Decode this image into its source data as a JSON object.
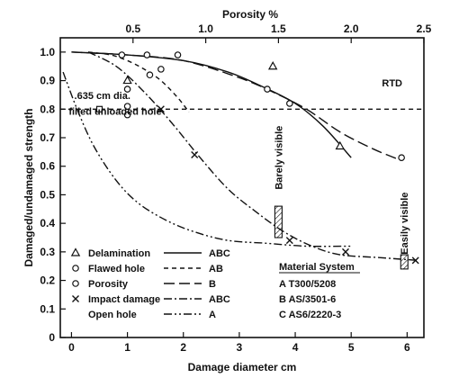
{
  "chart_data": {
    "type": "scatter",
    "title": "",
    "xlabel": "Damage diameter cm",
    "ylabel": "Damaged/undamaged strength",
    "top_xlabel": "Porosity %",
    "xlim": [
      -0.2,
      6.3
    ],
    "ylim": [
      0,
      1.05
    ],
    "top_xlim": [
      0,
      2.5
    ],
    "xticks": [
      "0",
      "1",
      "2",
      "3",
      "4",
      "5",
      "6"
    ],
    "yticks": [
      "0",
      "0.1",
      "0.2",
      "0.3",
      "0.4",
      "0.5",
      "0.6",
      "0.7",
      "0.8",
      "0.9",
      "1.0"
    ],
    "top_xticks": [
      "0.5",
      "1.0",
      "1.5",
      "2.0",
      "2.5"
    ],
    "annotations": {
      "rtd": "RTD",
      "hole_dia": ".635 cm dia.",
      "hole_label": "filled unloaded hole",
      "barely_visible": "Barely visible",
      "easily_visible": "Easily visible"
    },
    "legend": [
      {
        "marker": "△",
        "label": "Delamination",
        "line": "solid",
        "line_label": "ABC"
      },
      {
        "marker": "○",
        "label": "Flawed hole",
        "line": "dashed",
        "line_label": "AB"
      },
      {
        "marker": "●",
        "label": "Porosity",
        "line": "longdash",
        "line_label": "B"
      },
      {
        "marker": "×",
        "label": "Impact damage",
        "line": "dashdot",
        "line_label": "ABC"
      },
      {
        "marker": "",
        "label": "Open hole",
        "line": "dashdotdot",
        "line_label": "A"
      }
    ],
    "material_system": {
      "title": "Material System",
      "items": [
        "A  T300/5208",
        "B  AS/3501-6",
        "C  AS6/2220-3"
      ]
    },
    "series": [
      {
        "name": "Delamination",
        "marker": "triangle",
        "points": [
          [
            3.6,
            0.95
          ],
          [
            1.0,
            0.9
          ],
          [
            4.8,
            0.67
          ]
        ]
      },
      {
        "name": "Flawed hole",
        "marker": "circle",
        "points": [
          [
            0.9,
            0.99
          ],
          [
            1.35,
            0.99
          ],
          [
            1.9,
            0.99
          ],
          [
            1.4,
            0.92
          ],
          [
            1.6,
            0.94
          ],
          [
            1.0,
            0.87
          ],
          [
            1.0,
            0.81
          ],
          [
            1.0,
            0.78
          ]
        ]
      },
      {
        "name": "Porosity",
        "marker": "circle",
        "points": [
          [
            3.5,
            0.87
          ],
          [
            3.9,
            0.82
          ],
          [
            5.9,
            0.63
          ]
        ]
      },
      {
        "name": "Impact damage",
        "marker": "x",
        "points": [
          [
            1.6,
            0.8
          ],
          [
            2.2,
            0.64
          ],
          [
            3.9,
            0.34
          ],
          [
            4.9,
            0.3
          ],
          [
            6.15,
            0.27
          ]
        ]
      },
      {
        "name": "Filled unloaded hole",
        "marker": "square",
        "points": [
          [
            0.5,
            0.8
          ]
        ]
      }
    ],
    "curves": [
      {
        "name": "Delamination",
        "style": "solid",
        "points": [
          [
            0.0,
            1.0
          ],
          [
            1.0,
            0.99
          ],
          [
            2.0,
            0.97
          ],
          [
            2.8,
            0.93
          ],
          [
            3.4,
            0.88
          ],
          [
            4.0,
            0.82
          ],
          [
            4.5,
            0.74
          ],
          [
            5.0,
            0.63
          ]
        ]
      },
      {
        "name": "Flawed hole",
        "style": "dashed",
        "points": [
          [
            0.3,
            1.0
          ],
          [
            0.7,
            0.99
          ],
          [
            1.0,
            0.97
          ],
          [
            1.3,
            0.94
          ],
          [
            1.6,
            0.9
          ],
          [
            1.9,
            0.84
          ],
          [
            2.1,
            0.79
          ]
        ]
      },
      {
        "name": "Porosity",
        "style": "longdash",
        "points": [
          [
            0.0,
            1.0
          ],
          [
            1.0,
            0.99
          ],
          [
            2.0,
            0.97
          ],
          [
            3.0,
            0.91
          ],
          [
            3.6,
            0.86
          ],
          [
            4.2,
            0.8
          ],
          [
            4.8,
            0.72
          ],
          [
            5.4,
            0.66
          ],
          [
            5.9,
            0.62
          ]
        ]
      },
      {
        "name": "Impact damage",
        "style": "dashdot",
        "points": [
          [
            0.3,
            1.0
          ],
          [
            0.8,
            0.95
          ],
          [
            1.3,
            0.86
          ],
          [
            1.8,
            0.75
          ],
          [
            2.3,
            0.63
          ],
          [
            2.8,
            0.52
          ],
          [
            3.3,
            0.44
          ],
          [
            3.8,
            0.37
          ],
          [
            4.3,
            0.32
          ],
          [
            4.8,
            0.29
          ],
          [
            5.5,
            0.28
          ],
          [
            6.2,
            0.27
          ]
        ]
      },
      {
        "name": "Open hole",
        "style": "dashdotdot",
        "points": [
          [
            -0.15,
            0.93
          ],
          [
            0.1,
            0.8
          ],
          [
            0.4,
            0.67
          ],
          [
            0.8,
            0.55
          ],
          [
            1.2,
            0.47
          ],
          [
            1.7,
            0.41
          ],
          [
            2.2,
            0.37
          ],
          [
            2.8,
            0.34
          ],
          [
            3.5,
            0.33
          ],
          [
            4.2,
            0.32
          ],
          [
            5.0,
            0.32
          ]
        ]
      },
      {
        "name": "Filled unloaded hole",
        "style": "shortdash",
        "points": [
          [
            -0.2,
            0.8
          ],
          [
            6.3,
            0.8
          ]
        ]
      }
    ],
    "hatched_bars": [
      {
        "x": 3.7,
        "y0": 0.35,
        "y1": 0.46
      },
      {
        "x": 5.95,
        "y0": 0.24,
        "y1": 0.29
      }
    ]
  }
}
